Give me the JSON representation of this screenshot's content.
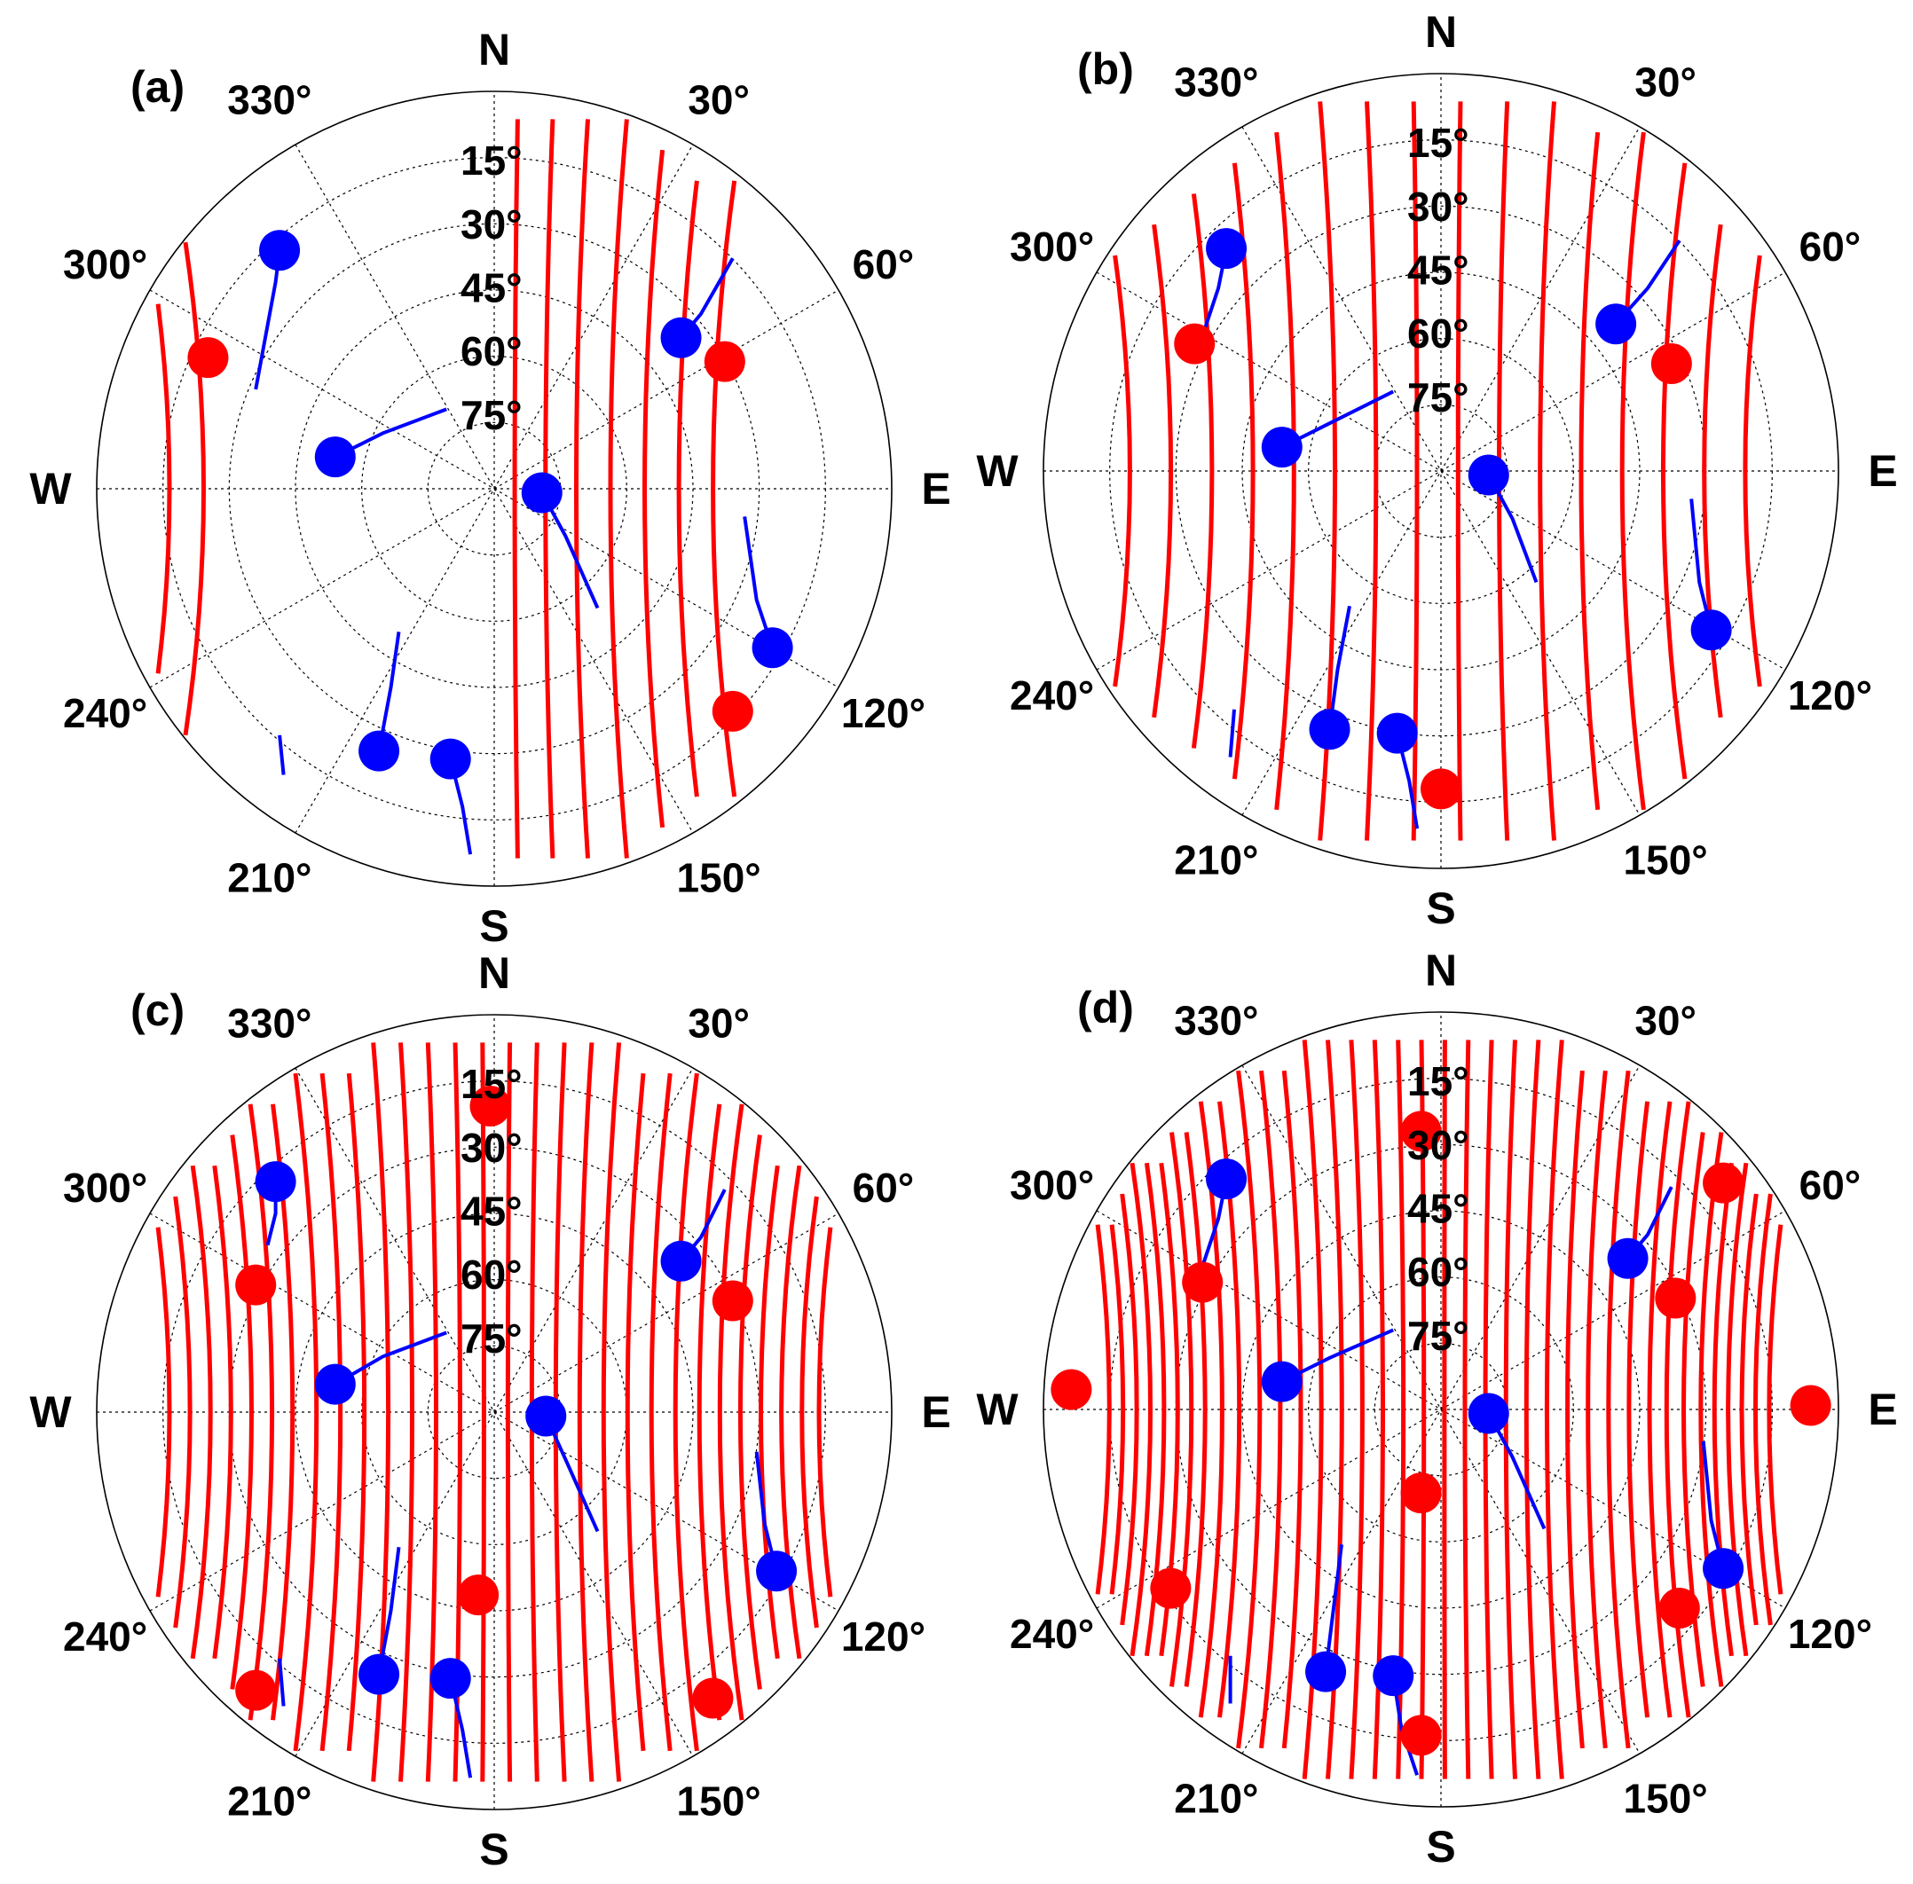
{
  "chart_data": [
    {
      "panel_label": "(a)",
      "type": "polar-skyplot",
      "compass": {
        "north": "N",
        "south": "S",
        "east": "E",
        "west": "W"
      },
      "azimuth_tick_labels": [
        "30°",
        "60°",
        "120°",
        "150°",
        "210°",
        "240°",
        "300°",
        "330°"
      ],
      "elevation_tick_labels": [
        "15°",
        "30°",
        "45°",
        "60°",
        "75°"
      ],
      "colors": {
        "red_series": "#ff0000",
        "blue_series": "#0000ff"
      },
      "red_tracks": {
        "x_offsets": [
          -0.95,
          -0.85,
          0.06,
          0.15,
          0.24,
          0.34,
          0.44,
          0.54,
          0.64
        ],
        "note_only": ""
      },
      "red_markers": [
        [
          -0.72,
          0.33
        ],
        [
          0.58,
          0.32
        ],
        [
          0.6,
          -0.56
        ]
      ],
      "blue_markers": [
        {
          "pt": [
            -0.54,
            0.6
          ],
          "tail": [
            [
              -0.55,
              0.52
            ],
            [
              -0.6,
              0.25
            ]
          ]
        },
        {
          "pt": [
            -0.4,
            0.08
          ],
          "tail": [
            [
              -0.28,
              0.14
            ],
            [
              -0.12,
              0.2
            ]
          ]
        },
        {
          "pt": [
            0.12,
            -0.01
          ],
          "tail": [
            [
              0.18,
              -0.12
            ],
            [
              0.26,
              -0.3
            ]
          ]
        },
        {
          "pt": [
            0.47,
            0.38
          ],
          "tail": [
            [
              0.52,
              0.44
            ],
            [
              0.6,
              0.58
            ]
          ]
        },
        {
          "pt": [
            0.7,
            -0.4
          ],
          "tail": [
            [
              0.66,
              -0.28
            ],
            [
              0.63,
              -0.07
            ]
          ]
        },
        {
          "pt": [
            -0.29,
            -0.66
          ],
          "tail": [
            [
              -0.26,
              -0.5
            ],
            [
              -0.24,
              -0.36
            ]
          ]
        },
        {
          "pt": [
            -0.11,
            -0.68
          ],
          "tail": [
            [
              -0.08,
              -0.8
            ],
            [
              -0.06,
              -0.92
            ]
          ]
        }
      ],
      "blue_segments": [
        [
          [
            -0.54,
            -0.62
          ],
          [
            -0.53,
            -0.72
          ]
        ]
      ]
    },
    {
      "panel_label": "(b)",
      "type": "polar-skyplot",
      "compass": {
        "north": "N",
        "south": "S",
        "east": "E",
        "west": "W"
      },
      "azimuth_tick_labels": [
        "30°",
        "60°",
        "120°",
        "150°",
        "210°",
        "240°",
        "300°",
        "330°"
      ],
      "elevation_tick_labels": [
        "15°",
        "30°",
        "45°",
        "60°",
        "75°"
      ],
      "colors": {
        "red_series": "#ff0000",
        "blue_series": "#0000ff"
      },
      "red_tracks": {
        "x_offsets": [
          -0.91,
          -0.79,
          -0.67,
          -0.55,
          -0.43,
          -0.31,
          -0.19,
          -0.07,
          0.05,
          0.17,
          0.29,
          0.41,
          0.53,
          0.65,
          0.77,
          0.89
        ],
        "note_only": ""
      },
      "red_markers": [
        [
          -0.62,
          0.32
        ],
        [
          0.58,
          0.27
        ],
        [
          0.0,
          -0.8
        ]
      ],
      "blue_markers": [
        {
          "pt": [
            -0.54,
            0.56
          ],
          "tail": [
            [
              -0.56,
              0.46
            ],
            [
              -0.6,
              0.34
            ]
          ]
        },
        {
          "pt": [
            -0.4,
            0.06
          ],
          "tail": [
            [
              -0.28,
              0.12
            ],
            [
              -0.12,
              0.2
            ]
          ]
        },
        {
          "pt": [
            0.12,
            -0.01
          ],
          "tail": [
            [
              0.18,
              -0.12
            ],
            [
              0.24,
              -0.28
            ]
          ]
        },
        {
          "pt": [
            0.44,
            0.37
          ],
          "tail": [
            [
              0.52,
              0.46
            ],
            [
              0.6,
              0.58
            ]
          ]
        },
        {
          "pt": [
            0.68,
            -0.4
          ],
          "tail": [
            [
              0.65,
              -0.28
            ],
            [
              0.63,
              -0.07
            ]
          ]
        },
        {
          "pt": [
            -0.28,
            -0.65
          ],
          "tail": [
            [
              -0.26,
              -0.5
            ],
            [
              -0.23,
              -0.34
            ]
          ]
        },
        {
          "pt": [
            -0.11,
            -0.66
          ],
          "tail": [
            [
              -0.08,
              -0.78
            ],
            [
              -0.06,
              -0.9
            ]
          ]
        }
      ],
      "blue_segments": [
        [
          [
            -0.52,
            -0.6
          ],
          [
            -0.53,
            -0.72
          ]
        ]
      ]
    },
    {
      "panel_label": "(c)",
      "type": "polar-skyplot",
      "compass": {
        "north": "N",
        "south": "S",
        "east": "E",
        "west": "W"
      },
      "azimuth_tick_labels": [
        "30°",
        "60°",
        "120°",
        "150°",
        "210°",
        "240°",
        "300°",
        "330°"
      ],
      "elevation_tick_labels": [
        "15°",
        "30°",
        "45°",
        "60°",
        "75°"
      ],
      "colors": {
        "red_series": "#ff0000",
        "blue_series": "#0000ff"
      },
      "red_tracks": {
        "x_offsets": [
          -0.95,
          -0.89,
          -0.83,
          -0.77,
          -0.71,
          -0.65,
          -0.59,
          -0.52,
          -0.45,
          -0.38,
          -0.31,
          -0.24,
          -0.17,
          -0.1,
          -0.03,
          0.04,
          0.11,
          0.18,
          0.25,
          0.32,
          0.39,
          0.46,
          0.53,
          0.6,
          0.66,
          0.72,
          0.78,
          0.84,
          0.9,
          0.95
        ],
        "note_only": ""
      },
      "red_markers": [
        [
          -0.01,
          0.77
        ],
        [
          -0.6,
          0.32
        ],
        [
          0.6,
          0.28
        ],
        [
          -0.04,
          -0.46
        ],
        [
          -0.6,
          -0.7
        ],
        [
          0.55,
          -0.72
        ]
      ],
      "blue_markers": [
        {
          "pt": [
            -0.55,
            0.58
          ],
          "tail": [
            [
              -0.55,
              0.5
            ],
            [
              -0.57,
              0.42
            ]
          ]
        },
        {
          "pt": [
            -0.4,
            0.07
          ],
          "tail": [
            [
              -0.28,
              0.14
            ],
            [
              -0.12,
              0.2
            ]
          ]
        },
        {
          "pt": [
            0.13,
            -0.01
          ],
          "tail": [
            [
              0.18,
              -0.12
            ],
            [
              0.26,
              -0.3
            ]
          ]
        },
        {
          "pt": [
            0.47,
            0.38
          ],
          "tail": [
            [
              0.52,
              0.44
            ],
            [
              0.58,
              0.56
            ]
          ]
        },
        {
          "pt": [
            0.71,
            -0.4
          ],
          "tail": [
            [
              0.68,
              -0.28
            ],
            [
              0.66,
              -0.1
            ]
          ]
        },
        {
          "pt": [
            -0.29,
            -0.66
          ],
          "tail": [
            [
              -0.26,
              -0.5
            ],
            [
              -0.24,
              -0.34
            ]
          ]
        },
        {
          "pt": [
            -0.11,
            -0.67
          ],
          "tail": [
            [
              -0.08,
              -0.8
            ],
            [
              -0.06,
              -0.92
            ]
          ]
        }
      ],
      "blue_segments": [
        [
          [
            -0.54,
            -0.62
          ],
          [
            -0.53,
            -0.74
          ]
        ]
      ]
    },
    {
      "panel_label": "(d)",
      "type": "polar-skyplot",
      "compass": {
        "north": "N",
        "south": "S",
        "east": "E",
        "west": "W"
      },
      "azimuth_tick_labels": [
        "30°",
        "60°",
        "120°",
        "150°",
        "210°",
        "240°",
        "300°",
        "330°"
      ],
      "elevation_tick_labels": [
        "15°",
        "30°",
        "45°",
        "60°",
        "75°"
      ],
      "colors": {
        "red_series": "#ff0000",
        "blue_series": "#0000ff"
      },
      "red_tracks": {
        "x_offsets": [
          -0.97,
          -0.93,
          -0.89,
          -0.85,
          -0.81,
          -0.77,
          -0.73,
          -0.69,
          -0.64,
          -0.59,
          -0.53,
          -0.47,
          -0.41,
          -0.35,
          -0.29,
          -0.23,
          -0.17,
          -0.11,
          -0.05,
          0.01,
          0.07,
          0.13,
          0.19,
          0.25,
          0.31,
          0.37,
          0.43,
          0.49,
          0.55,
          0.61,
          0.66,
          0.71,
          0.76,
          0.8,
          0.84,
          0.88,
          0.92,
          0.96
        ],
        "note_only": ""
      },
      "red_markers": [
        [
          -0.05,
          0.7
        ],
        [
          -0.6,
          0.32
        ],
        [
          0.59,
          0.28
        ],
        [
          -0.05,
          -0.21
        ],
        [
          -0.68,
          -0.45
        ],
        [
          0.6,
          -0.5
        ],
        [
          0.71,
          0.57
        ],
        [
          -0.93,
          0.05
        ],
        [
          0.93,
          0.01
        ],
        [
          -0.05,
          -0.82
        ]
      ],
      "blue_markers": [
        {
          "pt": [
            -0.54,
            0.58
          ],
          "tail": [
            [
              -0.56,
              0.48
            ],
            [
              -0.6,
              0.36
            ]
          ]
        },
        {
          "pt": [
            -0.4,
            0.07
          ],
          "tail": [
            [
              -0.28,
              0.13
            ],
            [
              -0.12,
              0.2
            ]
          ]
        },
        {
          "pt": [
            0.12,
            -0.01
          ],
          "tail": [
            [
              0.18,
              -0.12
            ],
            [
              0.26,
              -0.3
            ]
          ]
        },
        {
          "pt": [
            0.47,
            0.38
          ],
          "tail": [
            [
              0.52,
              0.44
            ],
            [
              0.58,
              0.56
            ]
          ]
        },
        {
          "pt": [
            0.71,
            -0.4
          ],
          "tail": [
            [
              0.68,
              -0.28
            ],
            [
              0.66,
              -0.08
            ]
          ]
        },
        {
          "pt": [
            -0.29,
            -0.66
          ],
          "tail": [
            [
              -0.27,
              -0.5
            ],
            [
              -0.25,
              -0.34
            ]
          ]
        },
        {
          "pt": [
            -0.12,
            -0.67
          ],
          "tail": [
            [
              -0.1,
              -0.8
            ],
            [
              -0.06,
              -0.92
            ]
          ]
        }
      ],
      "blue_segments": [
        [
          [
            -0.53,
            -0.62
          ],
          [
            -0.53,
            -0.74
          ]
        ]
      ]
    }
  ]
}
